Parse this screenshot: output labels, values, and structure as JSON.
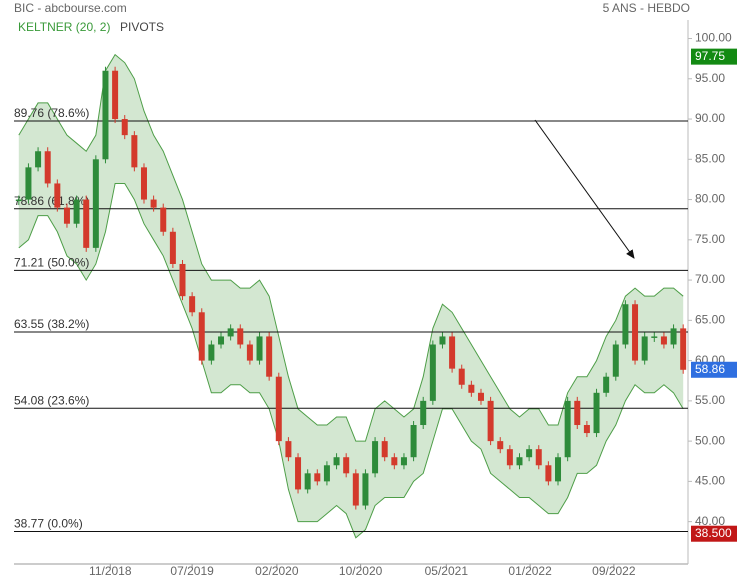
{
  "chart_data": {
    "type": "candlestick",
    "title": "BIC - abcbourse.com",
    "subtitle": "5 ANS - HEBDO",
    "indicators": [
      "KELTNER (20, 2)",
      "PIVOTS"
    ],
    "xlim": [
      0,
      70
    ],
    "xticks": [
      {
        "value": 10,
        "label": "11/2018"
      },
      {
        "value": 18.5,
        "label": "07/2019"
      },
      {
        "value": 27.3,
        "label": "02/2020"
      },
      {
        "value": 36,
        "label": "10/2020"
      },
      {
        "value": 44.9,
        "label": "05/2021"
      },
      {
        "value": 53.6,
        "label": "01/2022"
      },
      {
        "value": 62.3,
        "label": "09/2022"
      }
    ],
    "ylim": [
      33,
      102.3
    ],
    "yticks": [
      {
        "value": 40,
        "label": "40.00"
      },
      {
        "value": 45,
        "label": "45.00"
      },
      {
        "value": 50,
        "label": "50.00"
      },
      {
        "value": 55,
        "label": "55.00"
      },
      {
        "value": 60,
        "label": "60.00"
      },
      {
        "value": 65,
        "label": "65.00"
      },
      {
        "value": 70,
        "label": "70.00"
      },
      {
        "value": 75,
        "label": "75.00"
      },
      {
        "value": 80,
        "label": "80.00"
      },
      {
        "value": 85,
        "label": "85.00"
      },
      {
        "value": 90,
        "label": "90.00"
      },
      {
        "value": 95,
        "label": "95.00"
      },
      {
        "value": 100,
        "label": "100.00"
      }
    ],
    "up_color": "#2e8b3a",
    "down_color": "#d33a2c",
    "band_color": "#4e9e48",
    "closes": [
      80,
      84,
      86,
      82,
      79,
      77,
      80,
      74,
      85,
      96,
      90,
      88,
      84,
      80,
      79,
      76,
      72,
      68,
      66,
      60,
      62,
      63,
      64,
      62,
      60,
      63,
      58,
      50,
      48,
      44,
      46,
      45,
      47,
      48,
      46,
      42,
      46,
      50,
      48,
      47,
      48,
      52,
      55,
      62,
      63,
      59,
      57,
      56,
      55,
      50,
      49,
      47,
      48,
      49,
      47,
      45,
      48,
      55,
      52,
      51,
      56,
      58,
      62,
      67,
      60,
      63,
      63,
      62,
      64,
      58.86
    ],
    "band": {
      "upper": [
        88,
        90,
        92,
        92,
        90,
        88,
        87,
        86,
        88,
        96,
        98,
        97,
        95,
        91,
        88,
        86,
        83,
        80,
        76,
        72,
        70,
        70,
        70,
        69,
        69,
        70,
        68,
        63,
        58,
        54,
        53,
        52,
        52,
        53,
        53,
        50,
        50,
        54,
        55,
        54,
        53,
        54,
        58,
        64,
        67,
        66,
        64,
        62,
        60,
        58,
        56,
        54,
        53,
        54,
        54,
        52,
        52,
        56,
        58,
        58,
        60,
        63,
        65,
        68,
        69,
        68,
        68,
        69,
        69,
        68
      ],
      "lower": [
        74,
        75,
        78,
        78,
        76,
        73,
        72,
        70,
        72,
        76,
        82,
        82,
        80,
        77,
        75,
        73,
        70,
        67,
        64,
        60,
        56,
        56,
        57,
        57,
        56,
        56,
        54,
        50,
        44,
        40,
        40,
        40,
        41,
        42,
        41,
        38,
        39,
        42,
        43,
        43,
        43,
        45,
        46,
        50,
        54,
        54,
        52,
        50,
        49,
        46,
        45,
        44,
        43,
        43,
        42,
        41,
        41,
        43,
        46,
        46,
        47,
        50,
        52,
        55,
        57,
        56,
        56,
        57,
        56,
        54
      ]
    },
    "pivots": [
      {
        "value": 89.76,
        "label": "89.76  (78.6%)"
      },
      {
        "value": 78.86,
        "label": "78.86  (61.8%)"
      },
      {
        "value": 71.21,
        "label": "71.21  (50.0%)"
      },
      {
        "value": 63.55,
        "label": "63.55  (38.2%)"
      },
      {
        "value": 54.08,
        "label": "54.08  (23.6%)"
      },
      {
        "value": 38.77,
        "label": "38.77  (0.0%)"
      }
    ],
    "markers": [
      {
        "value": 97.75,
        "label": "97.75",
        "color": "#138a13"
      },
      {
        "value": 58.86,
        "label": "58.86",
        "color": "#2f6fe0"
      },
      {
        "value": 38.5,
        "label": "38.500",
        "color": "#c11717"
      }
    ]
  }
}
